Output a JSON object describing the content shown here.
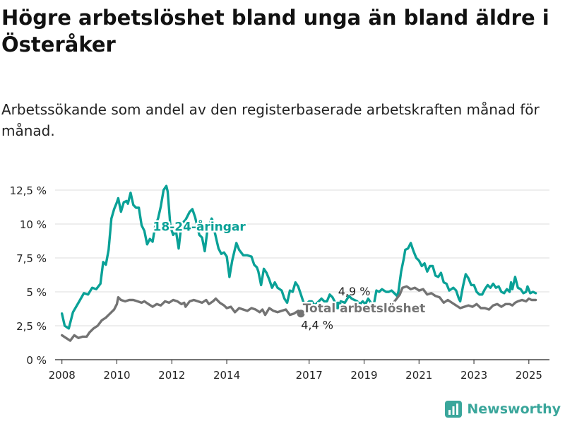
{
  "title": "Högre arbetslöshet bland unga än bland äldre i Österåker",
  "subtitle": "Arbetssökande som andel av den registerbaserade arbetskraften månad för månad.",
  "brand": "Newsworthy",
  "colors": {
    "youth": "#0aa197",
    "total": "#737373"
  },
  "chart_data": {
    "type": "line",
    "ylim": [
      0,
      12.5
    ],
    "xlim": [
      2007.75,
      2025.75
    ],
    "y_ticks": [
      {
        "value": 0,
        "label": "0 %"
      },
      {
        "value": 2.5,
        "label": "2,5 %"
      },
      {
        "value": 5,
        "label": "5 %"
      },
      {
        "value": 7.5,
        "label": "7,5 %"
      },
      {
        "value": 10,
        "label": "10 %"
      },
      {
        "value": 12.5,
        "label": "12,5 %"
      }
    ],
    "x_ticks": [
      {
        "value": 2008,
        "label": "2008"
      },
      {
        "value": 2010,
        "label": "2010"
      },
      {
        "value": 2012,
        "label": "2012"
      },
      {
        "value": 2014,
        "label": "2014"
      },
      {
        "value": 2017,
        "label": "2017"
      },
      {
        "value": 2019,
        "label": "2019"
      },
      {
        "value": 2021,
        "label": "2021"
      },
      {
        "value": 2023,
        "label": "2023"
      },
      {
        "value": 2025,
        "label": "2025"
      }
    ],
    "grid": true,
    "series": [
      {
        "name": "18-24-åringar",
        "color": "#0aa197",
        "end_label": "4,9 %",
        "points": [
          [
            2008.0,
            3.4
          ],
          [
            2008.1,
            2.5
          ],
          [
            2008.25,
            2.3
          ],
          [
            2008.4,
            3.5
          ],
          [
            2008.6,
            4.2
          ],
          [
            2008.8,
            4.9
          ],
          [
            2008.95,
            4.8
          ],
          [
            2009.1,
            5.3
          ],
          [
            2009.25,
            5.2
          ],
          [
            2009.4,
            5.6
          ],
          [
            2009.5,
            7.2
          ],
          [
            2009.6,
            7.0
          ],
          [
            2009.7,
            8.1
          ],
          [
            2009.8,
            10.4
          ],
          [
            2009.9,
            11.1
          ],
          [
            2010.0,
            11.6
          ],
          [
            2010.05,
            11.9
          ],
          [
            2010.15,
            10.9
          ],
          [
            2010.25,
            11.6
          ],
          [
            2010.35,
            11.7
          ],
          [
            2010.4,
            11.5
          ],
          [
            2010.5,
            12.3
          ],
          [
            2010.6,
            11.4
          ],
          [
            2010.7,
            11.2
          ],
          [
            2010.8,
            11.2
          ],
          [
            2010.9,
            9.9
          ],
          [
            2011.0,
            9.5
          ],
          [
            2011.1,
            8.5
          ],
          [
            2011.2,
            8.9
          ],
          [
            2011.3,
            8.7
          ],
          [
            2011.4,
            9.9
          ],
          [
            2011.5,
            10.4
          ],
          [
            2011.6,
            11.3
          ],
          [
            2011.7,
            12.5
          ],
          [
            2011.8,
            12.8
          ],
          [
            2011.85,
            12.4
          ],
          [
            2011.95,
            9.8
          ],
          [
            2012.05,
            9.2
          ],
          [
            2012.15,
            9.5
          ],
          [
            2012.25,
            8.2
          ],
          [
            2012.35,
            10.0
          ],
          [
            2012.5,
            10.3
          ],
          [
            2012.65,
            10.9
          ],
          [
            2012.75,
            11.1
          ],
          [
            2012.85,
            10.5
          ],
          [
            2013.0,
            9.2
          ],
          [
            2013.1,
            9.0
          ],
          [
            2013.2,
            8.0
          ],
          [
            2013.3,
            9.6
          ],
          [
            2013.45,
            10.4
          ],
          [
            2013.5,
            10.2
          ],
          [
            2013.55,
            9.5
          ],
          [
            2013.7,
            8.2
          ],
          [
            2013.8,
            7.8
          ],
          [
            2013.9,
            7.9
          ],
          [
            2014.0,
            7.6
          ],
          [
            2014.1,
            6.1
          ],
          [
            2014.2,
            7.3
          ],
          [
            2014.35,
            8.6
          ],
          [
            2014.45,
            8.1
          ],
          [
            2014.6,
            7.7
          ],
          [
            2014.75,
            7.7
          ],
          [
            2014.9,
            7.6
          ],
          [
            2015.0,
            7.0
          ],
          [
            2015.1,
            6.8
          ],
          [
            2015.15,
            6.5
          ],
          [
            2015.25,
            5.5
          ],
          [
            2015.35,
            6.7
          ],
          [
            2015.45,
            6.4
          ],
          [
            2015.55,
            5.9
          ],
          [
            2015.65,
            5.3
          ],
          [
            2015.75,
            5.7
          ],
          [
            2015.85,
            5.3
          ],
          [
            2016.0,
            5.1
          ],
          [
            2016.1,
            4.5
          ],
          [
            2016.2,
            4.2
          ],
          [
            2016.3,
            5.1
          ],
          [
            2016.4,
            5.0
          ],
          [
            2016.5,
            5.7
          ],
          [
            2016.6,
            5.4
          ],
          [
            2016.7,
            4.8
          ],
          [
            2016.8,
            4.2
          ],
          [
            2016.9,
            4.1
          ],
          [
            2017.0,
            4.3
          ],
          [
            2017.1,
            4.3
          ],
          [
            2017.2,
            4.0
          ],
          [
            2017.3,
            4.2
          ],
          [
            2017.45,
            4.5
          ],
          [
            2017.55,
            4.3
          ],
          [
            2017.65,
            4.3
          ],
          [
            2017.75,
            4.8
          ],
          [
            2017.85,
            4.6
          ],
          [
            2017.95,
            4.2
          ],
          [
            2018.05,
            4.0
          ]
        ]
      },
      {
        "name": "18-24-åringar",
        "color": "#0aa197",
        "points": [
          [
            2018.15,
            4.3
          ],
          [
            2018.3,
            4.2
          ],
          [
            2018.45,
            4.7
          ],
          [
            2018.55,
            4.5
          ],
          [
            2018.65,
            4.4
          ],
          [
            2018.75,
            4.3
          ],
          [
            2018.85,
            4.1
          ],
          [
            2018.95,
            4.3
          ],
          [
            2019.05,
            4.1
          ],
          [
            2019.15,
            4.5
          ],
          [
            2019.25,
            4.2
          ],
          [
            2019.35,
            4.0
          ],
          [
            2019.45,
            5.1
          ],
          [
            2019.55,
            5.0
          ],
          [
            2019.65,
            5.2
          ],
          [
            2019.8,
            5.0
          ],
          [
            2019.9,
            5.0
          ],
          [
            2020.0,
            5.1
          ],
          [
            2020.1,
            4.9
          ],
          [
            2020.2,
            4.7
          ],
          [
            2020.25,
            5.0
          ],
          [
            2020.35,
            6.5
          ],
          [
            2020.45,
            7.5
          ],
          [
            2020.5,
            8.1
          ],
          [
            2020.6,
            8.2
          ],
          [
            2020.7,
            8.6
          ],
          [
            2020.8,
            8.0
          ],
          [
            2020.9,
            7.5
          ],
          [
            2021.0,
            7.3
          ],
          [
            2021.1,
            6.9
          ],
          [
            2021.2,
            7.1
          ],
          [
            2021.3,
            6.5
          ],
          [
            2021.4,
            6.9
          ],
          [
            2021.5,
            6.9
          ],
          [
            2021.6,
            6.2
          ],
          [
            2021.7,
            6.1
          ],
          [
            2021.8,
            6.4
          ],
          [
            2021.9,
            5.7
          ],
          [
            2022.0,
            5.6
          ],
          [
            2022.1,
            5.1
          ],
          [
            2022.25,
            5.3
          ],
          [
            2022.35,
            5.1
          ],
          [
            2022.45,
            4.5
          ],
          [
            2022.5,
            4.3
          ],
          [
            2022.6,
            5.4
          ],
          [
            2022.7,
            6.3
          ],
          [
            2022.8,
            6.0
          ],
          [
            2022.9,
            5.5
          ],
          [
            2023.0,
            5.5
          ],
          [
            2023.1,
            5.0
          ],
          [
            2023.2,
            4.8
          ],
          [
            2023.3,
            4.8
          ],
          [
            2023.4,
            5.2
          ],
          [
            2023.5,
            5.5
          ],
          [
            2023.6,
            5.3
          ],
          [
            2023.7,
            5.6
          ],
          [
            2023.8,
            5.3
          ],
          [
            2023.9,
            5.4
          ],
          [
            2024.0,
            5.0
          ],
          [
            2024.1,
            4.9
          ],
          [
            2024.2,
            5.2
          ],
          [
            2024.3,
            5.0
          ],
          [
            2024.35,
            5.7
          ],
          [
            2024.4,
            5.2
          ],
          [
            2024.5,
            6.1
          ],
          [
            2024.6,
            5.3
          ],
          [
            2024.7,
            5.2
          ],
          [
            2024.8,
            4.9
          ],
          [
            2024.9,
            5.0
          ],
          [
            2024.95,
            5.4
          ],
          [
            2025.05,
            4.9
          ],
          [
            2025.15,
            5.0
          ],
          [
            2025.25,
            4.9
          ]
        ]
      },
      {
        "name": "Total arbetslöshet",
        "color": "#737373",
        "end_label": "4,4 %",
        "points": [
          [
            2008.0,
            1.8
          ],
          [
            2008.15,
            1.6
          ],
          [
            2008.3,
            1.4
          ],
          [
            2008.45,
            1.8
          ],
          [
            2008.6,
            1.6
          ],
          [
            2008.75,
            1.7
          ],
          [
            2008.9,
            1.7
          ],
          [
            2009.0,
            2.0
          ],
          [
            2009.15,
            2.3
          ],
          [
            2009.3,
            2.5
          ],
          [
            2009.45,
            2.9
          ],
          [
            2009.6,
            3.1
          ],
          [
            2009.75,
            3.4
          ],
          [
            2009.9,
            3.7
          ],
          [
            2010.0,
            4.1
          ],
          [
            2010.05,
            4.6
          ],
          [
            2010.15,
            4.4
          ],
          [
            2010.3,
            4.3
          ],
          [
            2010.45,
            4.4
          ],
          [
            2010.6,
            4.4
          ],
          [
            2010.75,
            4.3
          ],
          [
            2010.9,
            4.2
          ],
          [
            2011.0,
            4.3
          ],
          [
            2011.15,
            4.1
          ],
          [
            2011.3,
            3.9
          ],
          [
            2011.45,
            4.1
          ],
          [
            2011.6,
            4.0
          ],
          [
            2011.75,
            4.3
          ],
          [
            2011.9,
            4.2
          ],
          [
            2012.05,
            4.4
          ],
          [
            2012.2,
            4.3
          ],
          [
            2012.35,
            4.1
          ],
          [
            2012.45,
            4.2
          ],
          [
            2012.5,
            3.9
          ],
          [
            2012.65,
            4.3
          ],
          [
            2012.8,
            4.4
          ],
          [
            2012.95,
            4.3
          ],
          [
            2013.1,
            4.2
          ],
          [
            2013.25,
            4.4
          ],
          [
            2013.35,
            4.1
          ],
          [
            2013.5,
            4.3
          ],
          [
            2013.6,
            4.5
          ],
          [
            2013.75,
            4.2
          ],
          [
            2013.9,
            4.0
          ],
          [
            2014.0,
            3.8
          ],
          [
            2014.15,
            3.9
          ],
          [
            2014.3,
            3.5
          ],
          [
            2014.45,
            3.8
          ],
          [
            2014.6,
            3.7
          ],
          [
            2014.75,
            3.6
          ],
          [
            2014.9,
            3.8
          ],
          [
            2015.05,
            3.7
          ],
          [
            2015.2,
            3.5
          ],
          [
            2015.3,
            3.7
          ],
          [
            2015.4,
            3.3
          ],
          [
            2015.55,
            3.8
          ],
          [
            2015.7,
            3.6
          ],
          [
            2015.85,
            3.5
          ],
          [
            2016.0,
            3.6
          ],
          [
            2016.15,
            3.7
          ],
          [
            2016.3,
            3.3
          ],
          [
            2016.45,
            3.4
          ],
          [
            2016.6,
            3.6
          ],
          [
            2016.7,
            3.4
          ]
        ]
      },
      {
        "name": "Total arbetslöshet",
        "color": "#737373",
        "points": [
          [
            2020.0,
            4.0
          ],
          [
            2020.15,
            4.4
          ],
          [
            2020.3,
            4.8
          ],
          [
            2020.4,
            5.3
          ],
          [
            2020.55,
            5.4
          ],
          [
            2020.7,
            5.2
          ],
          [
            2020.85,
            5.3
          ],
          [
            2021.0,
            5.1
          ],
          [
            2021.15,
            5.2
          ],
          [
            2021.3,
            4.8
          ],
          [
            2021.45,
            4.9
          ],
          [
            2021.6,
            4.7
          ],
          [
            2021.75,
            4.6
          ],
          [
            2021.9,
            4.2
          ],
          [
            2022.05,
            4.4
          ],
          [
            2022.2,
            4.2
          ],
          [
            2022.35,
            4.0
          ],
          [
            2022.5,
            3.8
          ],
          [
            2022.65,
            3.9
          ],
          [
            2022.8,
            4.0
          ],
          [
            2022.95,
            3.9
          ],
          [
            2023.1,
            4.1
          ],
          [
            2023.25,
            3.8
          ],
          [
            2023.4,
            3.8
          ],
          [
            2023.55,
            3.7
          ],
          [
            2023.7,
            4.0
          ],
          [
            2023.85,
            4.1
          ],
          [
            2024.0,
            3.9
          ],
          [
            2024.15,
            4.1
          ],
          [
            2024.3,
            4.1
          ],
          [
            2024.4,
            4.0
          ],
          [
            2024.5,
            4.2
          ],
          [
            2024.6,
            4.3
          ],
          [
            2024.75,
            4.4
          ],
          [
            2024.9,
            4.3
          ],
          [
            2025.0,
            4.5
          ],
          [
            2025.1,
            4.4
          ],
          [
            2025.25,
            4.4
          ]
        ]
      }
    ],
    "annotations": [
      {
        "text": "18-24-åringar",
        "x": 2013.0,
        "y": 9.5,
        "color": "#0aa197"
      },
      {
        "text": "Total arbetslöshet",
        "x": 2019.0,
        "y": 3.5,
        "color": "#737373"
      }
    ]
  }
}
